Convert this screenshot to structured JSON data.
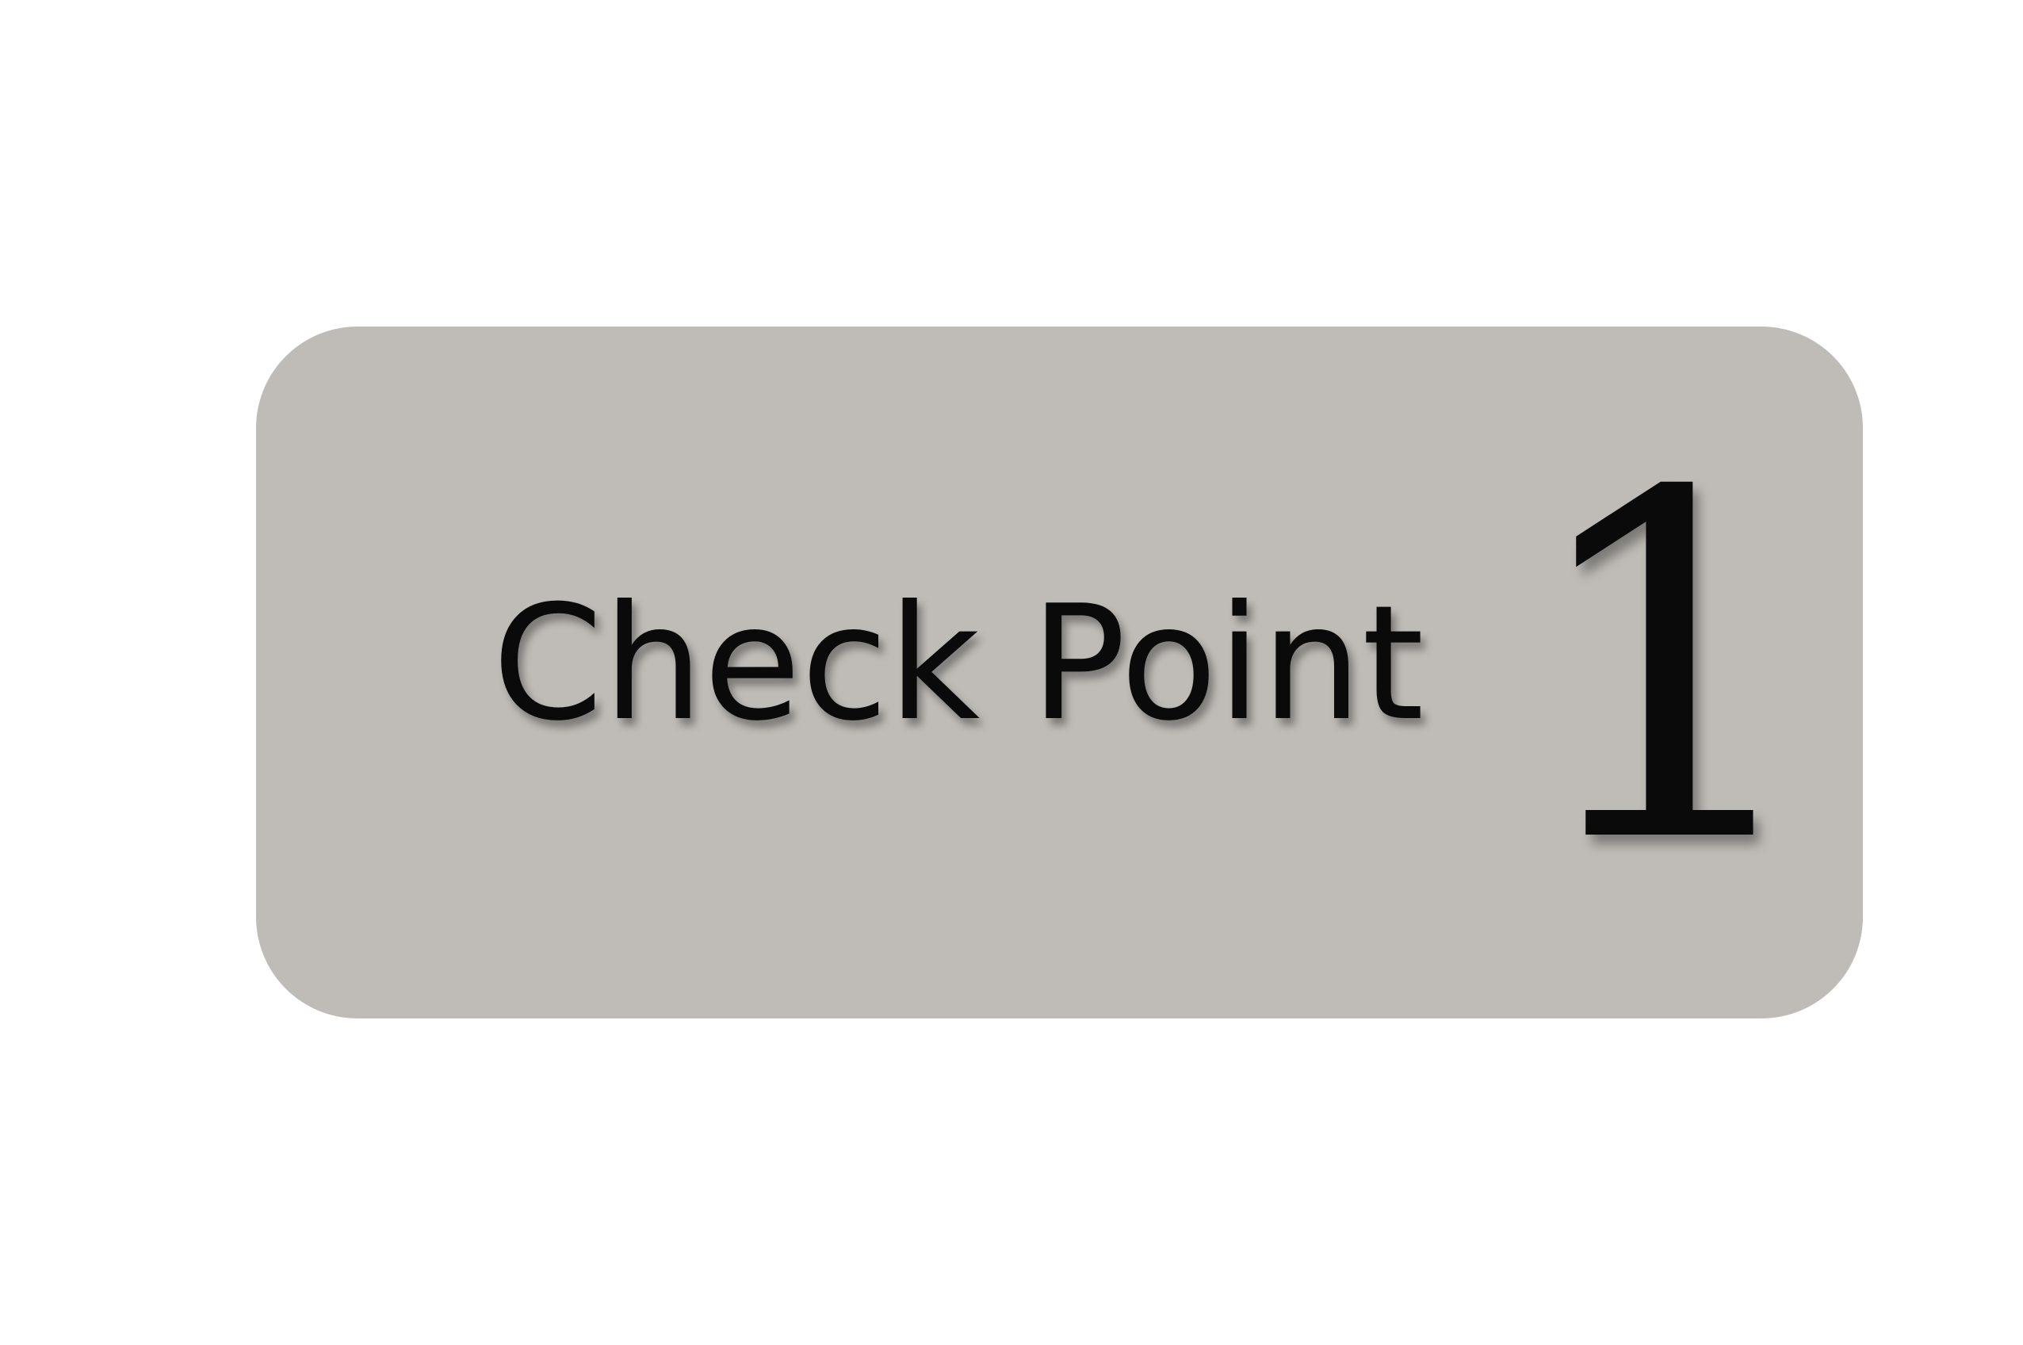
{
  "card": {
    "label": "Check Point",
    "number": "1",
    "background_color": "#bfbcb7",
    "text_color": "#0a0a0a"
  }
}
